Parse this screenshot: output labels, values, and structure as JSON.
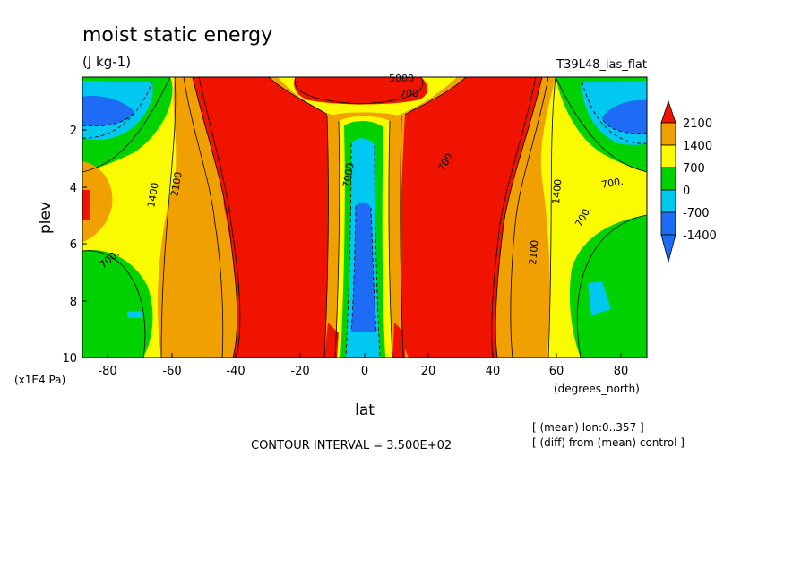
{
  "chart_data": {
    "type": "heatmap",
    "title": "moist static energy",
    "units": "(J kg-1)",
    "run_label": "T39L48_ias_flat",
    "xlabel": "lat",
    "x_units": "(degrees_north)",
    "ylabel": "plev",
    "y_units": "(x1E4 Pa)",
    "x_ticks": [
      "-80",
      "-60",
      "-40",
      "-20",
      "0",
      "20",
      "40",
      "60",
      "80"
    ],
    "y_ticks": [
      "2",
      "4",
      "6",
      "8",
      "10"
    ],
    "xlim": [
      -88,
      88
    ],
    "ylim": [
      10,
      0.05
    ],
    "y_inverted": true,
    "contour_interval_text": "CONTOUR INTERVAL = 3.500E+02",
    "notes": [
      "[ (mean) lon:0..357 ]",
      "[ (diff) from (mean) control ]"
    ],
    "colorbar": {
      "labels": [
        "2100",
        "1400",
        "700",
        "0",
        "-700",
        "-1400"
      ],
      "levels": [
        -2100,
        -1400,
        -700,
        0,
        700,
        1400,
        2100
      ],
      "colors": [
        "#1e6cf5",
        "#00c8f0",
        "#00d200",
        "#fafa00",
        "#f0a000",
        "#f01400"
      ]
    },
    "contour_labels": [
      "2100",
      "1400",
      "700",
      "700.",
      "700",
      "2100",
      "1400",
      "700.",
      "700.",
      "5000",
      "7000"
    ]
  }
}
